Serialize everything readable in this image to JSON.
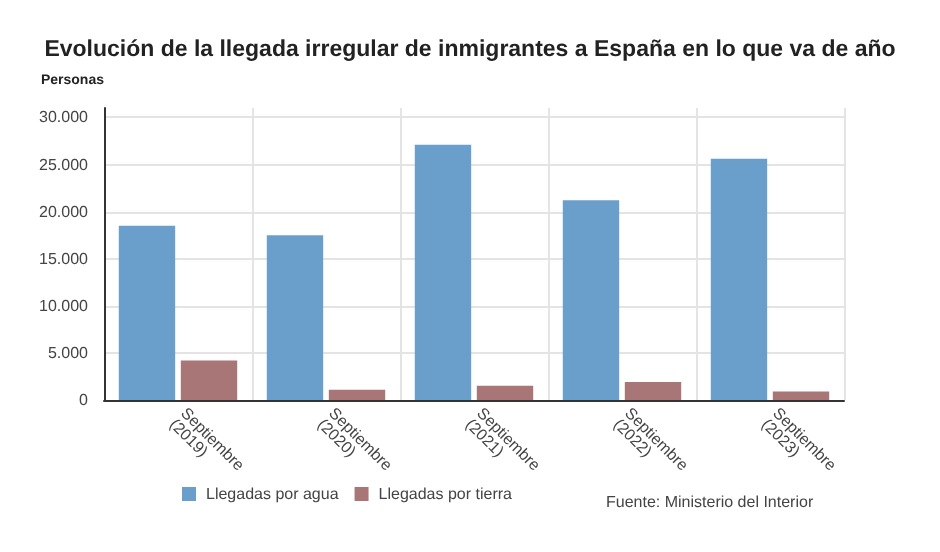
{
  "chart_data": {
    "type": "bar",
    "title": "Evolución de la llegada irregular de inmigrantes a España en lo que va de año",
    "ylabel": "Personas",
    "categories": [
      "Septiembre (2019)",
      "Septiembre (2020)",
      "Septiembre (2021)",
      "Septiembre (2022)",
      "Septiembre (2023)"
    ],
    "series": [
      {
        "name": "Llegadas por agua",
        "color": "#6a9fcb",
        "values": [
          18500,
          17500,
          27100,
          21200,
          25600
        ]
      },
      {
        "name": "Llegadas por tierra",
        "color": "#a87676",
        "values": [
          4200,
          1100,
          1500,
          1900,
          900
        ]
      }
    ],
    "ylim": [
      0,
      31000
    ],
    "yticks": [
      {
        "value": 0,
        "label": "0"
      },
      {
        "value": 5000,
        "label": "5.000"
      },
      {
        "value": 10000,
        "label": "10.000"
      },
      {
        "value": 15000,
        "label": "15.000"
      },
      {
        "value": 20000,
        "label": "20.000"
      },
      {
        "value": 25000,
        "label": "25.000"
      },
      {
        "value": 30000,
        "label": "30.000"
      }
    ],
    "grid": true,
    "legend": "bottom",
    "annotations": [
      "Fuente: Ministerio del Interior"
    ]
  }
}
